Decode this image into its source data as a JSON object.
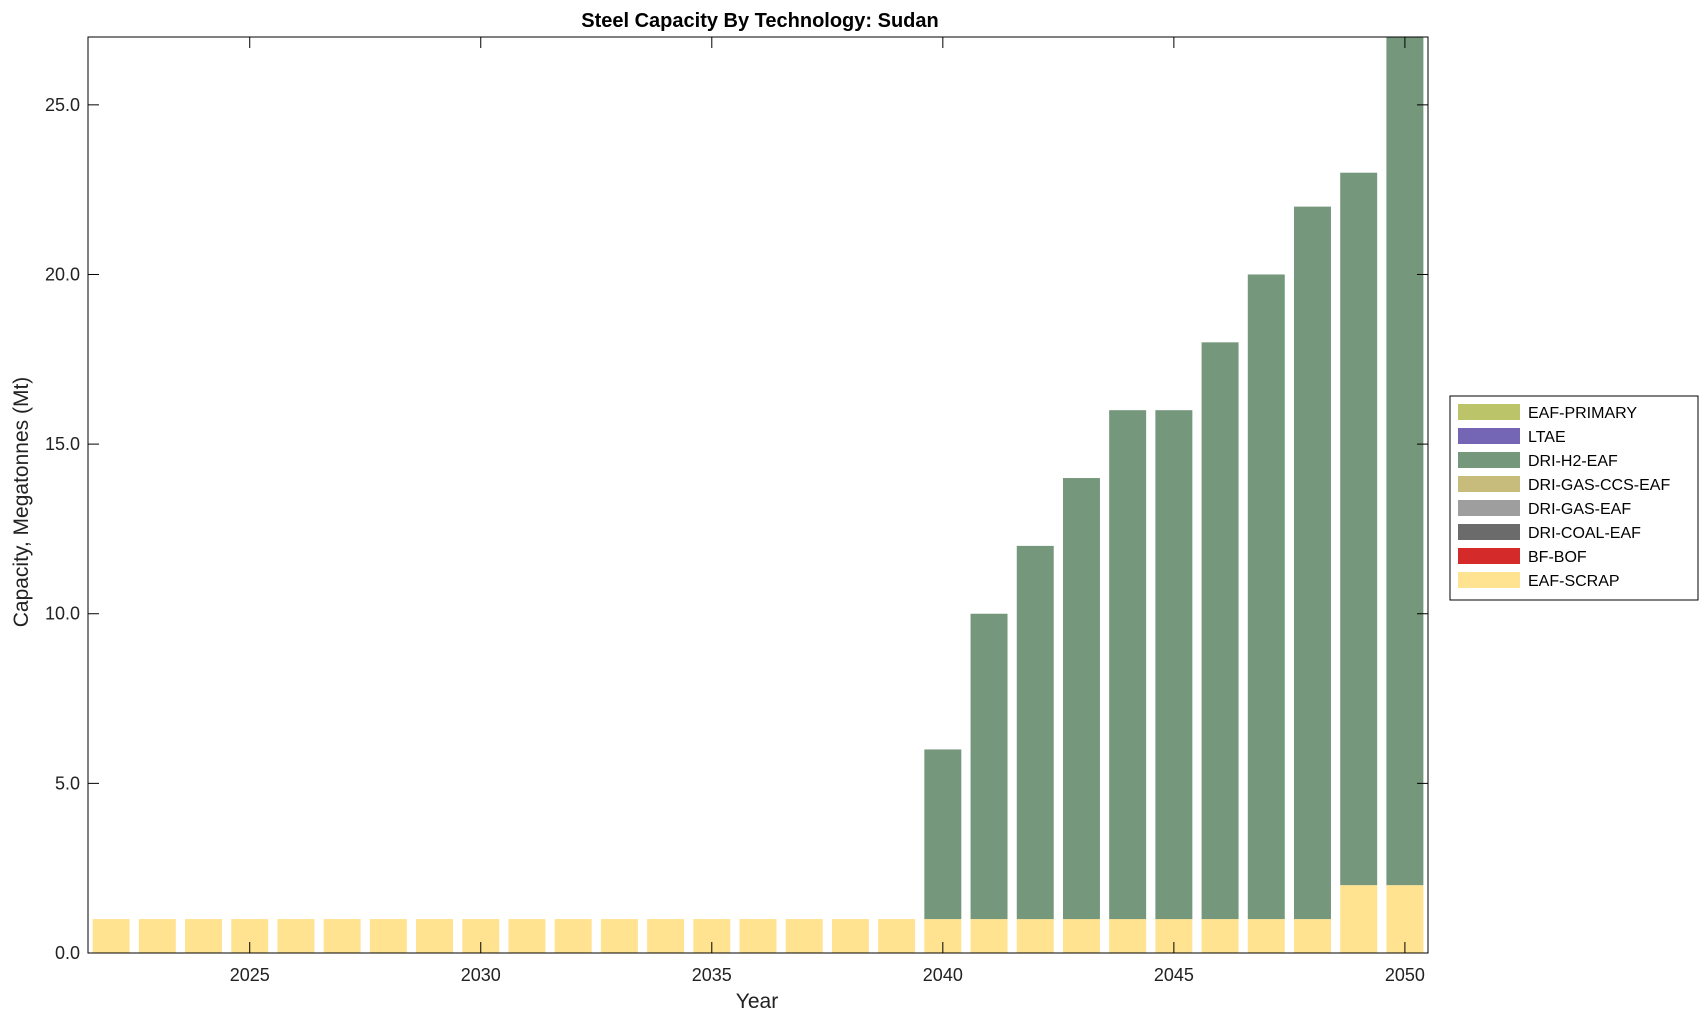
{
  "chart_data": {
    "type": "bar",
    "stacked": true,
    "title": "Steel Capacity By Technology: Sudan",
    "xlabel": "Year",
    "ylabel": "Capacity, Megatonnes (Mt)",
    "xlim": [
      2021.5,
      2050.5
    ],
    "ylim": [
      0,
      27
    ],
    "yticks": [
      0,
      5,
      10,
      15,
      20,
      25
    ],
    "ytick_labels": [
      "0.0",
      "5.0",
      "10.0",
      "15.0",
      "20.0",
      "25.0"
    ],
    "xticks": [
      2025,
      2030,
      2035,
      2040,
      2045,
      2050
    ],
    "xtick_labels": [
      "2025",
      "2030",
      "2035",
      "2040",
      "2045",
      "2050"
    ],
    "legend_position": "right",
    "categories": [
      2022,
      2023,
      2024,
      2025,
      2026,
      2027,
      2028,
      2029,
      2030,
      2031,
      2032,
      2033,
      2034,
      2035,
      2036,
      2037,
      2038,
      2039,
      2040,
      2041,
      2042,
      2043,
      2044,
      2045,
      2046,
      2047,
      2048,
      2049,
      2050
    ],
    "series": [
      {
        "name": "EAF-SCRAP",
        "color": "#ffe391",
        "values": [
          1,
          1,
          1,
          1,
          1,
          1,
          1,
          1,
          1,
          1,
          1,
          1,
          1,
          1,
          1,
          1,
          1,
          1,
          1,
          1,
          1,
          1,
          1,
          1,
          1,
          1,
          1,
          2,
          2
        ]
      },
      {
        "name": "BF-BOF",
        "color": "#d42a2a",
        "values": [
          0,
          0,
          0,
          0,
          0,
          0,
          0,
          0,
          0,
          0,
          0,
          0,
          0,
          0,
          0,
          0,
          0,
          0,
          0,
          0,
          0,
          0,
          0,
          0,
          0,
          0,
          0,
          0,
          0
        ]
      },
      {
        "name": "DRI-COAL-EAF",
        "color": "#6b6b6b",
        "values": [
          0,
          0,
          0,
          0,
          0,
          0,
          0,
          0,
          0,
          0,
          0,
          0,
          0,
          0,
          0,
          0,
          0,
          0,
          0,
          0,
          0,
          0,
          0,
          0,
          0,
          0,
          0,
          0,
          0
        ]
      },
      {
        "name": "DRI-GAS-EAF",
        "color": "#9e9e9e",
        "values": [
          0,
          0,
          0,
          0,
          0,
          0,
          0,
          0,
          0,
          0,
          0,
          0,
          0,
          0,
          0,
          0,
          0,
          0,
          0,
          0,
          0,
          0,
          0,
          0,
          0,
          0,
          0,
          0,
          0
        ]
      },
      {
        "name": "DRI-GAS-CCS-EAF",
        "color": "#c8bc7d",
        "values": [
          0,
          0,
          0,
          0,
          0,
          0,
          0,
          0,
          0,
          0,
          0,
          0,
          0,
          0,
          0,
          0,
          0,
          0,
          0,
          0,
          0,
          0,
          0,
          0,
          0,
          0,
          0,
          0,
          0
        ]
      },
      {
        "name": "DRI-H2-EAF",
        "color": "#75977c",
        "values": [
          0,
          0,
          0,
          0,
          0,
          0,
          0,
          0,
          0,
          0,
          0,
          0,
          0,
          0,
          0,
          0,
          0,
          0,
          5,
          9,
          11,
          13,
          15,
          15,
          17,
          19,
          21,
          21,
          25
        ]
      },
      {
        "name": "LTAE",
        "color": "#7466b5",
        "values": [
          0,
          0,
          0,
          0,
          0,
          0,
          0,
          0,
          0,
          0,
          0,
          0,
          0,
          0,
          0,
          0,
          0,
          0,
          0,
          0,
          0,
          0,
          0,
          0,
          0,
          0,
          0,
          0,
          0
        ]
      },
      {
        "name": "EAF-PRIMARY",
        "color": "#bcc46a",
        "values": [
          0,
          0,
          0,
          0,
          0,
          0,
          0,
          0,
          0,
          0,
          0,
          0,
          0,
          0,
          0,
          0,
          0,
          0,
          0,
          0,
          0,
          0,
          0,
          0,
          0,
          0,
          0,
          0,
          0
        ]
      }
    ],
    "legend_order": [
      "EAF-PRIMARY",
      "LTAE",
      "DRI-H2-EAF",
      "DRI-GAS-CCS-EAF",
      "DRI-GAS-EAF",
      "DRI-COAL-EAF",
      "BF-BOF",
      "EAF-SCRAP"
    ]
  }
}
